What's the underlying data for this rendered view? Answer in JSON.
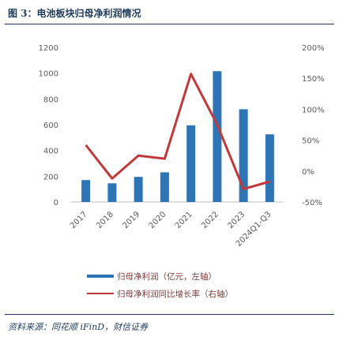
{
  "figure": {
    "title": "图 3：电池板块归母净利润情况",
    "source": "资料来源：同花顺 iFinD，财信证券"
  },
  "chart_data": {
    "type": "bar",
    "categories": [
      "2017",
      "2018",
      "2019",
      "2020",
      "2021",
      "2022",
      "2023",
      "2024Q1-Q3"
    ],
    "series": [
      {
        "name": "归母净利润（亿元，左轴）",
        "type": "bar",
        "axis": "left",
        "color": "#2e75b6",
        "values": [
          170,
          145,
          195,
          230,
          595,
          1015,
          720,
          525
        ]
      },
      {
        "name": "归母净利润同比增长率（右轴）",
        "type": "line",
        "axis": "right",
        "color": "#c0393b",
        "values": [
          0.42,
          -0.12,
          0.25,
          0.2,
          1.57,
          0.75,
          -0.29,
          -0.17
        ]
      }
    ],
    "y_left": {
      "ticks": [
        0,
        200,
        400,
        600,
        800,
        1000,
        1200
      ],
      "ylim": [
        0,
        1200
      ]
    },
    "y_right": {
      "ticks": [
        "-50%",
        "0%",
        "50%",
        "100%",
        "150%",
        "200%"
      ],
      "ylim": [
        -0.5,
        2.0
      ]
    },
    "legend_position": "bottom",
    "grid": false
  }
}
